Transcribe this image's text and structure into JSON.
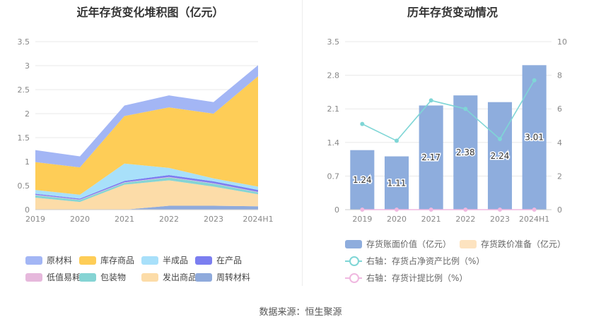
{
  "left_panel": {
    "title": "近年存货变化堆积图（亿元）"
  },
  "right_panel": {
    "title": "历年存货变动情况"
  },
  "source": "数据来源：恒生聚源",
  "chart_data": [
    {
      "type": "area",
      "stacked": true,
      "title": "近年存货变化堆积图（亿元）",
      "categories": [
        "2019",
        "2020",
        "2021",
        "2022",
        "2023",
        "2024H1"
      ],
      "ylim": [
        0,
        3.5
      ],
      "yticks": [
        "0",
        "0.5",
        "1",
        "1.5",
        "2",
        "2.5",
        "3",
        "3.5"
      ],
      "grid": true,
      "legend_position": "bottom",
      "series": [
        {
          "name": "周转材料",
          "color": "#8faadc",
          "values": [
            0.0,
            0.0,
            0.0,
            0.08,
            0.08,
            0.07
          ]
        },
        {
          "name": "发出商品",
          "color": "#fcdca8",
          "values": [
            0.25,
            0.16,
            0.52,
            0.53,
            0.4,
            0.25
          ]
        },
        {
          "name": "包装物",
          "color": "#85d4d4",
          "values": [
            0.05,
            0.04,
            0.04,
            0.06,
            0.06,
            0.04
          ]
        },
        {
          "name": "低值易耗品",
          "color": "#e6b8dc",
          "values": [
            0.01,
            0.01,
            0.01,
            0.01,
            0.01,
            0.01
          ]
        },
        {
          "name": "在产品",
          "color": "#7b7ef0",
          "values": [
            0.02,
            0.02,
            0.03,
            0.04,
            0.04,
            0.04
          ]
        },
        {
          "name": "半成品",
          "color": "#a8e0fa",
          "values": [
            0.08,
            0.08,
            0.36,
            0.15,
            0.06,
            0.07
          ]
        },
        {
          "name": "库存商品",
          "color": "#fecd57",
          "values": [
            0.58,
            0.57,
            0.99,
            1.26,
            1.35,
            2.3
          ]
        },
        {
          "name": "原材料",
          "color": "#a3b6f5",
          "values": [
            0.25,
            0.23,
            0.22,
            0.25,
            0.24,
            0.23
          ]
        }
      ],
      "legend_order": [
        "原材料",
        "库存商品",
        "半成品",
        "在产品",
        "低值易耗品",
        "包装物",
        "发出商品",
        "周转材料"
      ]
    },
    {
      "type": "bar",
      "title": "历年存货变动情况",
      "categories": [
        "2019",
        "2020",
        "2021",
        "2022",
        "2023",
        "2024H1"
      ],
      "ylim": [
        0,
        3.5
      ],
      "yticks": [
        "0",
        "0.7",
        "1.4",
        "2.1",
        "2.8",
        "3.5"
      ],
      "y2lim": [
        0,
        10
      ],
      "y2ticks": [
        "0",
        "2",
        "4",
        "6",
        "8",
        "10"
      ],
      "grid": true,
      "legend_position": "bottom",
      "series": [
        {
          "name": "存货账面价值（亿元）",
          "type": "bar",
          "axis": "left",
          "color": "#8eaddd",
          "values": [
            1.24,
            1.11,
            2.17,
            2.38,
            2.24,
            3.01
          ],
          "labels": [
            "1.24",
            "1.11",
            "2.17",
            "2.38",
            "2.24",
            "3.01"
          ]
        },
        {
          "name": "存货跌价准备（亿元）",
          "type": "bar",
          "axis": "left",
          "color": "#fde3c0",
          "values": [
            0,
            0,
            0,
            0,
            0,
            0
          ]
        },
        {
          "name": "右轴：存货占净资产比例（%）",
          "type": "line",
          "axis": "right",
          "color": "#7fd6d6",
          "values": [
            5.1,
            4.1,
            6.5,
            6.0,
            4.2,
            7.7
          ]
        },
        {
          "name": "右轴：存货计提比例（%）",
          "type": "line",
          "axis": "right",
          "color": "#f0b8e0",
          "values": [
            0,
            0,
            0,
            0,
            0,
            0
          ]
        }
      ]
    }
  ]
}
